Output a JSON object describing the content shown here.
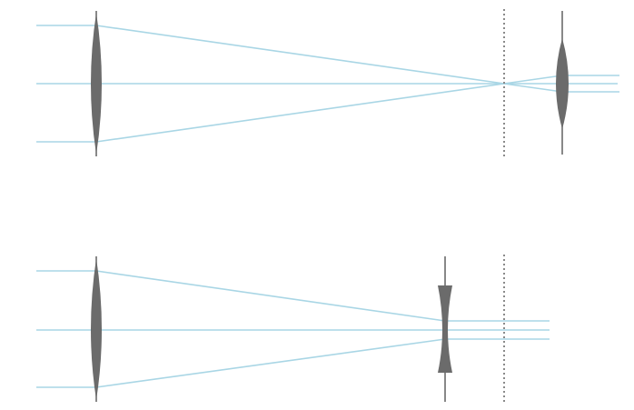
{
  "diagram": {
    "description_visible_text": "",
    "colors": {
      "ray": "#a9d6e5",
      "lens": "#6b6b6b",
      "focal_line": "#8a8a8a",
      "background": "#ffffff"
    },
    "panels": [
      {
        "id": "keplerian",
        "elements": [
          "converging-objective-lens",
          "focal-plane",
          "converging-eyepiece-lens"
        ]
      },
      {
        "id": "galilean",
        "elements": [
          "converging-objective-lens",
          "diverging-eyepiece-lens",
          "focal-plane"
        ]
      }
    ]
  }
}
